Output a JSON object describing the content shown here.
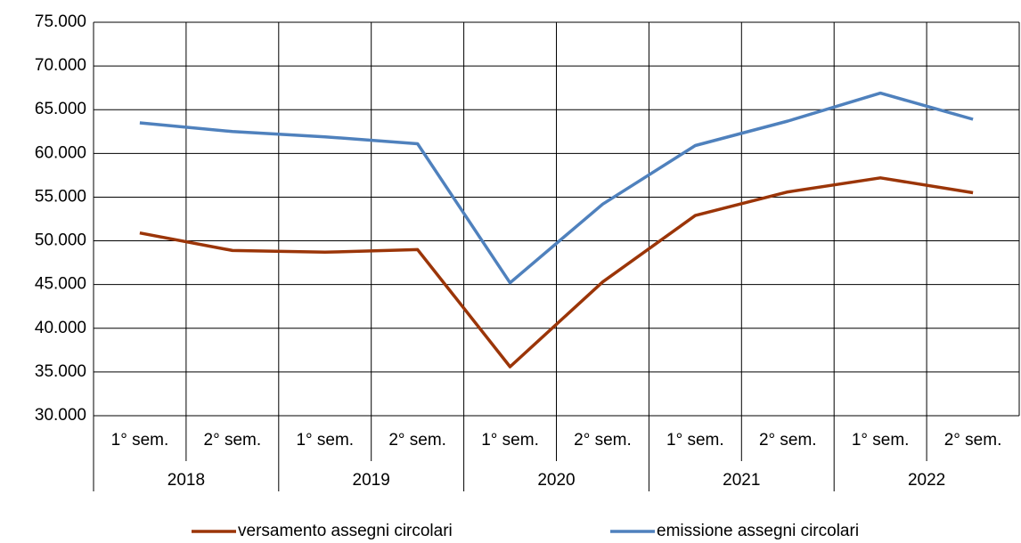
{
  "chart_data": {
    "type": "line",
    "categories": [
      "1° sem.",
      "2° sem.",
      "1° sem.",
      "2° sem.",
      "1° sem.",
      "2° sem.",
      "1° sem.",
      "2° sem.",
      "1° sem.",
      "2° sem."
    ],
    "category_groups": [
      "2018",
      "2019",
      "2020",
      "2021",
      "2022"
    ],
    "series": [
      {
        "name": "versamento assegni circolari",
        "color": "#9b3508",
        "values": [
          50900,
          48900,
          48700,
          49000,
          35600,
          45300,
          52900,
          55600,
          57200,
          55500
        ]
      },
      {
        "name": "emissione assegni circolari",
        "color": "#4f81bd",
        "values": [
          63500,
          62500,
          61900,
          61100,
          45200,
          54200,
          60900,
          63700,
          66900,
          63900
        ]
      }
    ],
    "ylim": [
      30000,
      75000
    ],
    "yticks": [
      {
        "value": 30000,
        "label": "30.000"
      },
      {
        "value": 35000,
        "label": "35.000"
      },
      {
        "value": 40000,
        "label": "40.000"
      },
      {
        "value": 45000,
        "label": "45.000"
      },
      {
        "value": 50000,
        "label": "50.000"
      },
      {
        "value": 55000,
        "label": "55.000"
      },
      {
        "value": 60000,
        "label": "60.000"
      },
      {
        "value": 65000,
        "label": "65.000"
      },
      {
        "value": 70000,
        "label": "70.000"
      },
      {
        "value": 75000,
        "label": "75.000"
      }
    ],
    "grid": true,
    "legend": "bottom"
  }
}
